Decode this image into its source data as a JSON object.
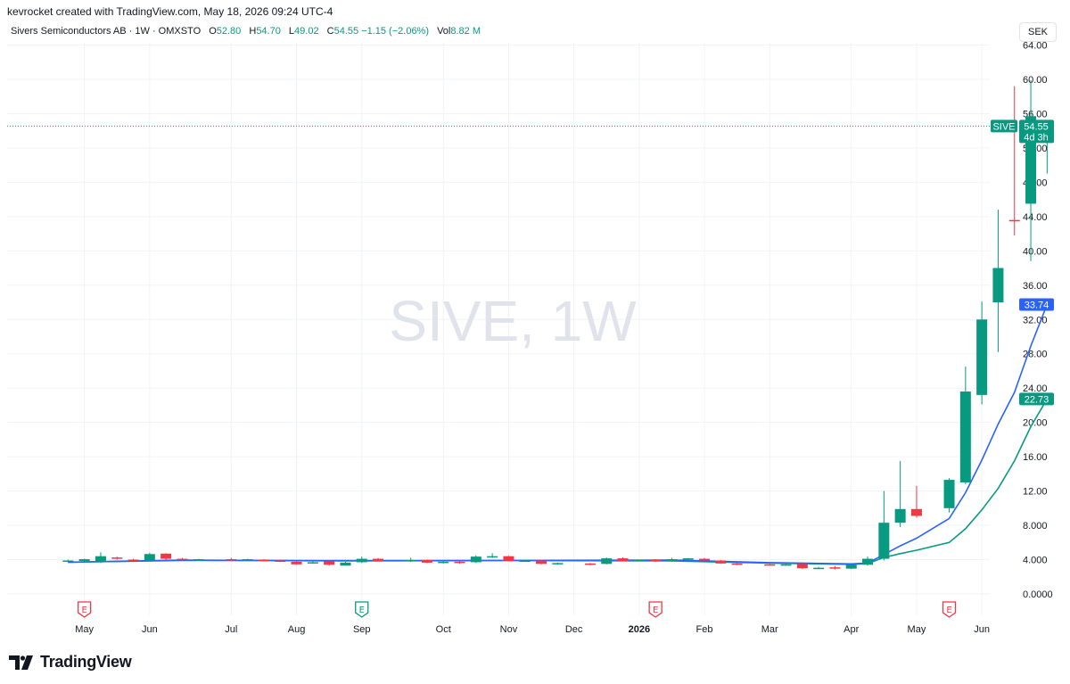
{
  "attribution": "kevrocket created with TradingView.com, May 18, 2026 09:24 UTC-4",
  "legend": {
    "title": "Sivers Semiconductors AB · 1W · OMXSTO",
    "o_label": "O",
    "o_value": "52.80",
    "h_label": "H",
    "h_value": "54.70",
    "l_label": "L",
    "l_value": "49.02",
    "c_label": "C",
    "c_value": "54.55",
    "change": "−1.15 (−2.06%)",
    "vol_label": "Vol",
    "vol_value": "8.82 M"
  },
  "currency": "SEK",
  "watermark": "SIVE, 1W",
  "brand": "TradingView",
  "colors": {
    "up": "#089981",
    "down": "#f23645",
    "ma_fast": "#2962ff",
    "ma_slow": "#089981",
    "earnings": "#f23645",
    "dividend": "#089981",
    "extra_event": "#9c27b0"
  },
  "chart_data": {
    "type": "candlestick",
    "symbol": "SIVE",
    "timeframe": "1W",
    "ylim": [
      0,
      64
    ],
    "y_ticks": [
      "0.0000",
      "4.000",
      "8.000",
      "12.00",
      "16.00",
      "20.00",
      "24.00",
      "28.00",
      "32.00",
      "36.00",
      "40.00",
      "44.00",
      "48.00",
      "52.00",
      "56.00",
      "60.00",
      "64.00"
    ],
    "x_ticks": [
      "May",
      "Jun",
      "Jul",
      "Aug",
      "Sep",
      "Oct",
      "Nov",
      "Dec",
      "2026",
      "Feb",
      "Mar",
      "Apr",
      "May",
      "Jun"
    ],
    "candles": [
      {
        "w": 3,
        "o": 3.8,
        "h": 4.0,
        "l": 3.7,
        "c": 3.9
      },
      {
        "w": 4,
        "o": 3.85,
        "h": 4.1,
        "l": 3.8,
        "c": 4.05
      },
      {
        "w": 5,
        "o": 3.8,
        "h": 4.85,
        "l": 3.6,
        "c": 4.4
      },
      {
        "w": 6,
        "o": 4.25,
        "h": 4.35,
        "l": 4.0,
        "c": 4.1
      },
      {
        "w": 7,
        "o": 4.0,
        "h": 4.1,
        "l": 3.8,
        "c": 3.9
      },
      {
        "w": 8,
        "o": 3.9,
        "h": 4.8,
        "l": 3.8,
        "c": 4.65
      },
      {
        "w": 9,
        "o": 4.7,
        "h": 4.75,
        "l": 4.0,
        "c": 4.1
      },
      {
        "w": 10,
        "o": 4.1,
        "h": 4.2,
        "l": 3.9,
        "c": 3.95
      },
      {
        "w": 11,
        "o": 3.95,
        "h": 4.1,
        "l": 3.9,
        "c": 4.05
      },
      {
        "w": 13,
        "o": 4.05,
        "h": 4.2,
        "l": 3.9,
        "c": 4.0
      },
      {
        "w": 14,
        "o": 3.95,
        "h": 4.1,
        "l": 3.9,
        "c": 4.05
      },
      {
        "w": 15,
        "o": 4.0,
        "h": 4.05,
        "l": 3.8,
        "c": 3.9
      },
      {
        "w": 16,
        "o": 3.9,
        "h": 3.95,
        "l": 3.7,
        "c": 3.75
      },
      {
        "w": 17,
        "o": 3.75,
        "h": 3.8,
        "l": 3.4,
        "c": 3.45
      },
      {
        "w": 18,
        "o": 3.65,
        "h": 3.8,
        "l": 3.55,
        "c": 3.7
      },
      {
        "w": 19,
        "o": 3.8,
        "h": 3.9,
        "l": 3.3,
        "c": 3.4
      },
      {
        "w": 20,
        "o": 3.3,
        "h": 3.75,
        "l": 3.3,
        "c": 3.65
      },
      {
        "w": 21,
        "o": 3.7,
        "h": 4.35,
        "l": 3.6,
        "c": 4.1
      },
      {
        "w": 22,
        "o": 4.1,
        "h": 4.2,
        "l": 3.8,
        "c": 3.85
      },
      {
        "w": 24,
        "o": 3.85,
        "h": 4.2,
        "l": 3.75,
        "c": 3.95
      },
      {
        "w": 25,
        "o": 3.95,
        "h": 4.0,
        "l": 3.6,
        "c": 3.65
      },
      {
        "w": 26,
        "o": 3.65,
        "h": 3.8,
        "l": 3.55,
        "c": 3.75
      },
      {
        "w": 27,
        "o": 3.75,
        "h": 3.8,
        "l": 3.5,
        "c": 3.7
      },
      {
        "w": 28,
        "o": 3.7,
        "h": 4.5,
        "l": 3.6,
        "c": 4.35
      },
      {
        "w": 29,
        "o": 4.3,
        "h": 4.75,
        "l": 4.2,
        "c": 4.4
      },
      {
        "w": 30,
        "o": 4.4,
        "h": 4.45,
        "l": 3.8,
        "c": 3.85
      },
      {
        "w": 31,
        "o": 3.85,
        "h": 3.95,
        "l": 3.75,
        "c": 3.9
      },
      {
        "w": 32,
        "o": 3.9,
        "h": 3.95,
        "l": 3.45,
        "c": 3.5
      },
      {
        "w": 33,
        "o": 3.5,
        "h": 3.65,
        "l": 3.4,
        "c": 3.6
      },
      {
        "w": 35,
        "o": 3.55,
        "h": 3.6,
        "l": 3.35,
        "c": 3.45
      },
      {
        "w": 36,
        "o": 3.5,
        "h": 4.25,
        "l": 3.45,
        "c": 4.15
      },
      {
        "w": 37,
        "o": 4.15,
        "h": 4.25,
        "l": 3.8,
        "c": 3.85
      },
      {
        "w": 38,
        "o": 3.85,
        "h": 4.0,
        "l": 3.8,
        "c": 3.95
      },
      {
        "w": 39,
        "o": 3.95,
        "h": 4.05,
        "l": 3.75,
        "c": 3.8
      },
      {
        "w": 40,
        "o": 3.8,
        "h": 4.2,
        "l": 3.75,
        "c": 4.05
      },
      {
        "w": 41,
        "o": 4.05,
        "h": 4.2,
        "l": 3.95,
        "c": 4.15
      },
      {
        "w": 42,
        "o": 4.1,
        "h": 4.2,
        "l": 3.85,
        "c": 3.9
      },
      {
        "w": 43,
        "o": 3.9,
        "h": 3.95,
        "l": 3.5,
        "c": 3.55
      },
      {
        "w": 44,
        "o": 3.55,
        "h": 3.6,
        "l": 3.35,
        "c": 3.4
      },
      {
        "w": 46,
        "o": 3.45,
        "h": 3.55,
        "l": 3.35,
        "c": 3.4
      },
      {
        "w": 47,
        "o": 3.4,
        "h": 3.55,
        "l": 3.3,
        "c": 3.45
      },
      {
        "w": 48,
        "o": 3.5,
        "h": 3.7,
        "l": 2.9,
        "c": 3.0
      },
      {
        "w": 49,
        "o": 3.0,
        "h": 3.15,
        "l": 2.9,
        "c": 3.05
      },
      {
        "w": 50,
        "o": 3.1,
        "h": 3.25,
        "l": 2.85,
        "c": 2.95
      },
      {
        "w": 51,
        "o": 2.95,
        "h": 3.45,
        "l": 2.9,
        "c": 3.4
      },
      {
        "w": 52,
        "o": 3.4,
        "h": 4.35,
        "l": 3.3,
        "c": 4.1
      },
      {
        "w": 53,
        "o": 4.1,
        "h": 12.0,
        "l": 3.9,
        "c": 8.3
      },
      {
        "w": 54,
        "o": 8.3,
        "h": 15.5,
        "l": 7.8,
        "c": 9.9
      },
      {
        "w": 55,
        "o": 9.9,
        "h": 12.6,
        "l": 8.9,
        "c": 9.1
      },
      {
        "w": 57,
        "o": 10.0,
        "h": 13.5,
        "l": 9.5,
        "c": 13.3
      },
      {
        "w": 58,
        "o": 13.0,
        "h": 26.5,
        "l": 12.8,
        "c": 23.6
      },
      {
        "w": 59,
        "o": 23.2,
        "h": 34.1,
        "l": 22.1,
        "c": 32.0
      },
      {
        "w": 60,
        "o": 34.0,
        "h": 44.8,
        "l": 28.2,
        "c": 38.0
      },
      {
        "w": 61,
        "o": 43.6,
        "h": 59.2,
        "l": 41.8,
        "c": 43.5
      },
      {
        "w": 62,
        "o": 45.5,
        "h": 59.9,
        "l": 38.8,
        "c": 55.7
      },
      {
        "w": 63,
        "o": 52.8,
        "h": 54.7,
        "l": 49.02,
        "c": 54.55
      }
    ],
    "ma_fast": [
      [
        3,
        3.7
      ],
      [
        10,
        3.95
      ],
      [
        20,
        3.85
      ],
      [
        30,
        3.9
      ],
      [
        40,
        3.95
      ],
      [
        46,
        3.65
      ],
      [
        51,
        3.5
      ],
      [
        52,
        3.6
      ],
      [
        53,
        4.6
      ],
      [
        54,
        5.6
      ],
      [
        55,
        6.5
      ],
      [
        57,
        8.8
      ],
      [
        58,
        11.8
      ],
      [
        59,
        15.6
      ],
      [
        60,
        19.8
      ],
      [
        61,
        23.5
      ],
      [
        62,
        28.9
      ],
      [
        63,
        33.74
      ]
    ],
    "ma_slow": [
      [
        3,
        3.7
      ],
      [
        10,
        3.9
      ],
      [
        20,
        3.9
      ],
      [
        30,
        3.9
      ],
      [
        40,
        3.85
      ],
      [
        46,
        3.6
      ],
      [
        51,
        3.45
      ],
      [
        52,
        3.55
      ],
      [
        53,
        4.25
      ],
      [
        54,
        4.7
      ],
      [
        55,
        5.1
      ],
      [
        57,
        6.0
      ],
      [
        58,
        7.6
      ],
      [
        59,
        9.8
      ],
      [
        60,
        12.3
      ],
      [
        61,
        15.5
      ],
      [
        62,
        19.5
      ],
      [
        63,
        22.73
      ]
    ],
    "last_price_label": {
      "symbol": "SIVE",
      "value": "54.55",
      "countdown": "4d 3h"
    },
    "ma_labels": {
      "fast": "33.74",
      "slow": "22.73"
    },
    "events": [
      {
        "w": 4,
        "type": "earnings",
        "label": "E"
      },
      {
        "w": 21,
        "type": "dividend",
        "label": "E"
      },
      {
        "w": 39,
        "type": "earnings",
        "label": "E"
      },
      {
        "w": 57,
        "type": "earnings",
        "label": "E"
      },
      {
        "w": 66,
        "type": "lightning",
        "label": "⚡"
      },
      {
        "w": 67,
        "type": "earnings-upcoming",
        "label": "E"
      }
    ]
  }
}
